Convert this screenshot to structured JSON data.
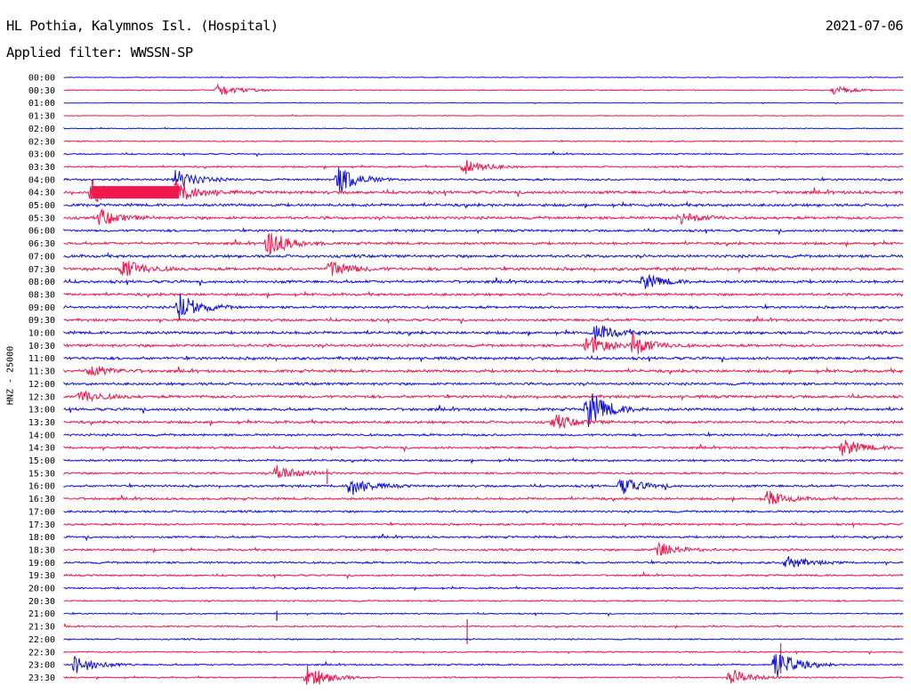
{
  "header": {
    "title": "HL Pothia, Kalymnos Isl. (Hospital)",
    "date": "2021-07-06",
    "filter": "Applied filter: WWSSN-SP"
  },
  "colors": {
    "blue": "#1010e0",
    "red": "#f0184c"
  },
  "chart_data": {
    "type": "line",
    "title": "HL Pothia, Kalymnos Isl. (Hospital)",
    "ylabel": "HNZ - 25000",
    "trace_colors": [
      "blue",
      "red"
    ],
    "rows": [
      "00:00",
      "00:30",
      "01:00",
      "01:30",
      "02:00",
      "02:30",
      "03:00",
      "03:30",
      "04:00",
      "04:30",
      "05:00",
      "05:30",
      "06:00",
      "06:30",
      "07:00",
      "07:30",
      "08:00",
      "08:30",
      "09:00",
      "09:30",
      "10:00",
      "10:30",
      "11:00",
      "11:30",
      "12:00",
      "12:30",
      "13:00",
      "13:30",
      "14:00",
      "14:30",
      "15:00",
      "15:30",
      "16:00",
      "16:30",
      "17:00",
      "17:30",
      "18:00",
      "18:30",
      "19:00",
      "19:30",
      "20:00",
      "20:30",
      "21:00",
      "21:30",
      "22:00",
      "22:30",
      "23:00",
      "23:30"
    ],
    "noise_level": [
      0.3,
      0.4,
      0.3,
      0.3,
      0.4,
      0.5,
      0.6,
      0.7,
      0.9,
      1.3,
      1.2,
      1.2,
      1.0,
      1.1,
      1.2,
      1.3,
      1.2,
      1.1,
      1.1,
      1.1,
      1.2,
      1.2,
      1.2,
      1.2,
      1.1,
      1.2,
      1.2,
      1.1,
      1.0,
      1.0,
      0.9,
      0.9,
      1.0,
      1.0,
      0.9,
      0.9,
      0.9,
      0.9,
      0.9,
      0.8,
      0.7,
      0.7,
      0.6,
      0.6,
      0.6,
      0.6,
      0.7,
      0.6
    ],
    "events": [
      {
        "row": "00:30",
        "minute": 5.5,
        "amplitude": 8
      },
      {
        "row": "00:30",
        "minute": 27.5,
        "amplitude": 5
      },
      {
        "row": "03:30",
        "minute": 14.3,
        "amplitude": 9
      },
      {
        "row": "04:00",
        "minute": 4.0,
        "amplitude": 12
      },
      {
        "row": "04:00",
        "minute": 9.8,
        "amplitude": 16
      },
      {
        "row": "04:30",
        "minute": 1.0,
        "amplitude": 14
      },
      {
        "row": "04:30",
        "minute": 4.0,
        "amplitude": 14
      },
      {
        "row": "05:30",
        "minute": 1.3,
        "amplitude": 9
      },
      {
        "row": "05:30",
        "minute": 22.0,
        "amplitude": 7
      },
      {
        "row": "06:30",
        "minute": 7.3,
        "amplitude": 16
      },
      {
        "row": "07:30",
        "minute": 2.1,
        "amplitude": 12
      },
      {
        "row": "07:30",
        "minute": 9.5,
        "amplitude": 10
      },
      {
        "row": "08:00",
        "minute": 20.7,
        "amplitude": 9
      },
      {
        "row": "09:00",
        "minute": 4.1,
        "amplitude": 16
      },
      {
        "row": "10:00",
        "minute": 19.0,
        "amplitude": 10
      },
      {
        "row": "10:30",
        "minute": 18.7,
        "amplitude": 12
      },
      {
        "row": "10:30",
        "minute": 20.3,
        "amplitude": 13
      },
      {
        "row": "11:30",
        "minute": 0.9,
        "amplitude": 8
      },
      {
        "row": "12:30",
        "minute": 0.6,
        "amplitude": 8
      },
      {
        "row": "13:00",
        "minute": 18.7,
        "amplitude": 22
      },
      {
        "row": "13:30",
        "minute": 17.5,
        "amplitude": 9
      },
      {
        "row": "14:30",
        "minute": 27.8,
        "amplitude": 10
      },
      {
        "row": "15:30",
        "minute": 7.6,
        "amplitude": 9
      },
      {
        "row": "16:00",
        "minute": 10.2,
        "amplitude": 11
      },
      {
        "row": "16:00",
        "minute": 19.9,
        "amplitude": 10
      },
      {
        "row": "16:30",
        "minute": 25.1,
        "amplitude": 9
      },
      {
        "row": "18:30",
        "minute": 21.2,
        "amplitude": 10
      },
      {
        "row": "19:00",
        "minute": 25.8,
        "amplitude": 8
      },
      {
        "row": "23:00",
        "minute": 0.4,
        "amplitude": 11
      },
      {
        "row": "23:00",
        "minute": 25.4,
        "amplitude": 18
      },
      {
        "row": "23:30",
        "minute": 8.7,
        "amplitude": 14
      },
      {
        "row": "23:30",
        "minute": 23.8,
        "amplitude": 10
      }
    ],
    "spikes": [
      {
        "row": "04:30",
        "minute": 1.0,
        "saturated_block_end_minute": 4.1
      },
      {
        "row": "21:00",
        "minute": 7.6,
        "amplitude": 8
      },
      {
        "row": "21:30",
        "minute": 14.4,
        "amplitude": 20
      },
      {
        "row": "15:30",
        "minute": 9.4,
        "amplitude": 12
      },
      {
        "row": "22:30",
        "minute": 25.6,
        "amplitude": 24
      }
    ],
    "grid": false,
    "legend": "none"
  }
}
